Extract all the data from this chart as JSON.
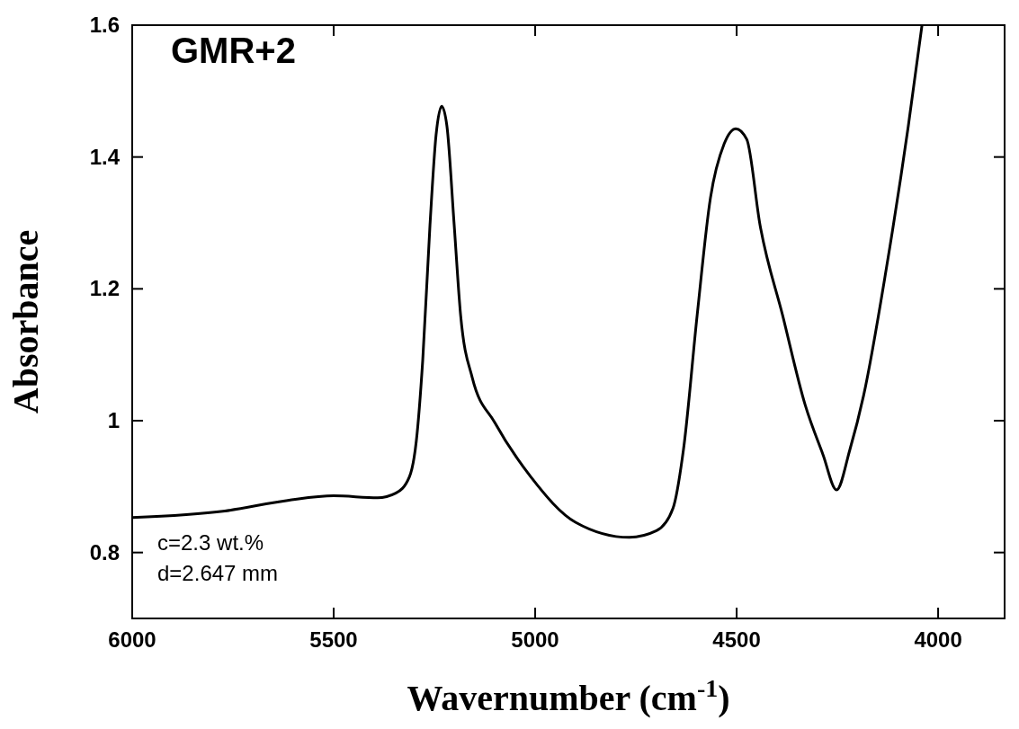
{
  "chart_data": {
    "type": "line",
    "xlabel": "Wavernumber (cm$^{-1}$)",
    "ylabel": "Absorbance",
    "annotations": [
      "GMR+2",
      "c=2.3 wt.%",
      "d=2.647 mm"
    ],
    "x": [
      6000,
      5770,
      5614,
      5500,
      5391,
      5346,
      5312,
      5295,
      5279,
      5261,
      5246,
      5232,
      5219,
      5201,
      5185,
      5156,
      5100,
      5011,
      4900,
      4766,
      4699,
      4658,
      4632,
      4598,
      4565,
      4531,
      4502,
      4475,
      4442,
      4386,
      4330,
      4286,
      4252,
      4219,
      4185,
      4129,
      4074,
      4040
    ],
    "series": [
      {
        "color": "#000000",
        "values": [
          0.853,
          0.863,
          0.879,
          0.886,
          0.883,
          0.89,
          0.915,
          0.969,
          1.092,
          1.297,
          1.433,
          1.477,
          1.447,
          1.297,
          1.16,
          1.065,
          0.997,
          0.915,
          0.846,
          0.823,
          0.833,
          0.867,
          0.956,
          1.16,
          1.338,
          1.42,
          1.443,
          1.427,
          1.297,
          1.16,
          1.024,
          0.949,
          0.895,
          0.956,
          1.038,
          1.229,
          1.447,
          1.6
        ]
      }
    ],
    "xlim": [
      6000,
      3835
    ],
    "ylim": [
      0.7,
      1.6
    ],
    "xticks": [
      6000,
      5500,
      5000,
      4500,
      4000
    ],
    "yticks": [
      0.8,
      1,
      1.2,
      1.4,
      1.6
    ],
    "grid": false,
    "marker": "none",
    "line_style": "solid"
  }
}
